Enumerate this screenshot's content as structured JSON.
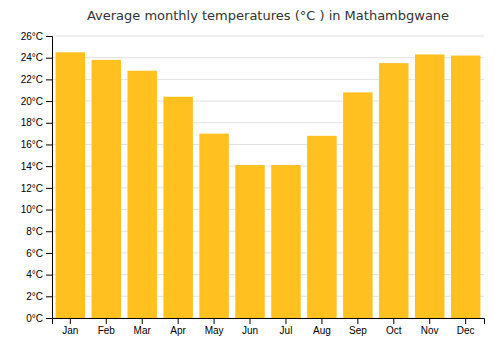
{
  "chart_data": {
    "type": "bar",
    "title": "Average monthly temperatures (°C ) in Mathambgwane",
    "categories": [
      "Jan",
      "Feb",
      "Mar",
      "Apr",
      "May",
      "Jun",
      "Jul",
      "Aug",
      "Sep",
      "Oct",
      "Nov",
      "Dec"
    ],
    "values": [
      24.5,
      23.8,
      22.8,
      20.4,
      17.0,
      14.1,
      14.1,
      16.8,
      20.8,
      23.5,
      24.3,
      24.2
    ],
    "color": "#FFC020",
    "ylim": [
      0,
      26
    ],
    "yticks": [
      {
        "value": 0,
        "label": "0°C"
      },
      {
        "value": 2,
        "label": "2°C"
      },
      {
        "value": 4,
        "label": "4°C"
      },
      {
        "value": 6,
        "label": "6°C"
      },
      {
        "value": 8,
        "label": "8°C"
      },
      {
        "value": 10,
        "label": "10°C"
      },
      {
        "value": 12,
        "label": "12°C"
      },
      {
        "value": 14,
        "label": "14°C"
      },
      {
        "value": 16,
        "label": "16°C"
      },
      {
        "value": 18,
        "label": "18°C"
      },
      {
        "value": 20,
        "label": "20°C"
      },
      {
        "value": 22,
        "label": "22°C"
      },
      {
        "value": 24,
        "label": "24°C"
      },
      {
        "value": 26,
        "label": "26°C"
      }
    ],
    "grid": true
  }
}
